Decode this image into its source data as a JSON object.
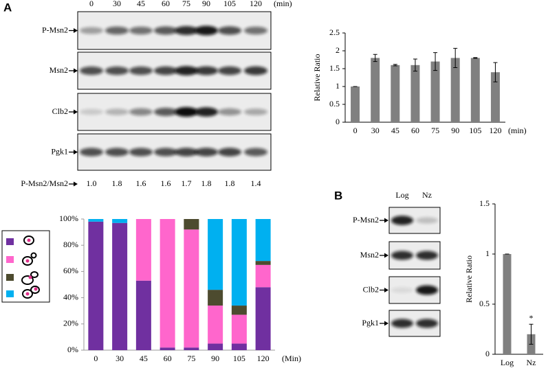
{
  "figure": {
    "panel_a": {
      "label": "A",
      "time_header": [
        "0",
        "30",
        "45",
        "60",
        "75",
        "90",
        "105",
        "120"
      ],
      "time_unit": "(min)",
      "blot_labels": [
        "P-Msn2",
        "Msn2",
        "Clb2",
        "Pgk1"
      ],
      "ratio_label": "P-Msn2/Msn2",
      "ratios": [
        "1.0",
        "1.8",
        "1.6",
        "1.6",
        "1.7",
        "1.8",
        "1.8",
        "1.4"
      ]
    },
    "panel_b": {
      "label": "B",
      "lanes": [
        "Log",
        "Nz"
      ],
      "blot_labels": [
        "P-Msn2",
        "Msn2",
        "Clb2",
        "Pgk1"
      ]
    }
  },
  "chart_data": [
    {
      "type": "bar",
      "ylabel": "Relative Ratio",
      "categories": [
        "0",
        "30",
        "45",
        "60",
        "75",
        "90",
        "105",
        "120"
      ],
      "x_unit": "(min)",
      "values": [
        1.0,
        1.8,
        1.6,
        1.6,
        1.7,
        1.8,
        1.8,
        1.4
      ],
      "errors": [
        0,
        0.1,
        0.02,
        0.17,
        0.25,
        0.27,
        0.01,
        0.27
      ],
      "color": "#808080",
      "ylim": [
        0,
        2.5
      ],
      "yticks": [
        0,
        0.5,
        1,
        1.5,
        2,
        2.5
      ]
    },
    {
      "type": "stacked_bar",
      "categories": [
        "0",
        "30",
        "45",
        "60",
        "75",
        "90",
        "105",
        "120"
      ],
      "xlabel": "(Min)",
      "series": [
        {
          "color": "#7030a0",
          "values": [
            98,
            97,
            53,
            2,
            2,
            5,
            5,
            48
          ]
        },
        {
          "color": "#ff66cc",
          "values": [
            0,
            0,
            47,
            98,
            90,
            29,
            22,
            17
          ]
        },
        {
          "color": "#4d4b2f",
          "values": [
            0,
            0,
            0,
            0,
            8,
            12,
            7,
            3
          ]
        },
        {
          "color": "#00b0f0",
          "values": [
            2,
            3,
            0,
            0,
            0,
            54,
            66,
            32
          ]
        }
      ],
      "ylim": [
        0,
        100
      ],
      "yticks": [
        {
          "value": 0,
          "label": "0%"
        },
        {
          "value": 20,
          "label": "20%"
        },
        {
          "value": 40,
          "label": "40%"
        },
        {
          "value": 60,
          "label": "60%"
        },
        {
          "value": 80,
          "label": "80%"
        },
        {
          "value": 100,
          "label": "100%"
        }
      ]
    },
    {
      "type": "bar",
      "ylabel": "Relative Ratio",
      "categories": [
        "Log",
        "Nz"
      ],
      "values": [
        1.0,
        0.2
      ],
      "errors": [
        0,
        0.1
      ],
      "annotation": "*",
      "color": "#808080",
      "ylim": [
        0,
        1.5
      ],
      "yticks": [
        0,
        0.5,
        1,
        1.5
      ]
    }
  ]
}
